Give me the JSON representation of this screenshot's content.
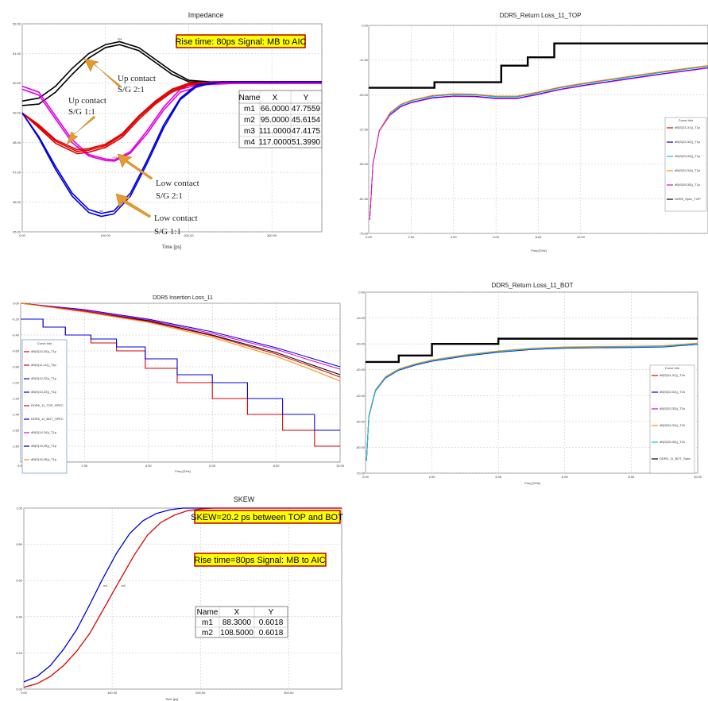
{
  "chart_data": [
    {
      "id": "impedance",
      "type": "line",
      "title": "Impedance",
      "xlabel": "Time [ps]",
      "ylabel": "",
      "xlim": [
        0,
        360
      ],
      "ylim": [
        45,
        52
      ],
      "xticks": [
        "0.00",
        "100.00",
        "200.00",
        "300.00"
      ],
      "yticks": [
        "45.00",
        "46.00",
        "47.00",
        "48.00",
        "49.00",
        "50.00",
        "51.00",
        "52.00"
      ],
      "info_box": "Rise time: 80ps  Signal: MB to AIC",
      "annotations": [
        "Up contact",
        "S/G 2:1",
        "Up contact",
        "S/G 1:1",
        "Low contact",
        "S/G 2:1",
        "Low contact",
        "S/G 1:1"
      ],
      "marker_table": {
        "headers": [
          "Name",
          "X",
          "Y"
        ],
        "rows": [
          [
            "m1",
            "66.0000",
            "47.7559"
          ],
          [
            "m2",
            "95.0000",
            "45.6154"
          ],
          [
            "m3",
            "111.0000",
            "47.4175"
          ],
          [
            "m4",
            "117.0000",
            "51.3990"
          ]
        ]
      },
      "series": [
        {
          "color": "#000000",
          "x": [
            0,
            20,
            40,
            60,
            80,
            100,
            117,
            140,
            160,
            180,
            200,
            250,
            300,
            360
          ],
          "y": [
            49.4,
            49.5,
            49.9,
            50.5,
            51.0,
            51.3,
            51.4,
            51.2,
            50.8,
            50.4,
            50.1,
            50.0,
            50.0,
            50.0
          ]
        },
        {
          "color": "#000000",
          "x": [
            0,
            20,
            40,
            60,
            80,
            100,
            117,
            140,
            160,
            180,
            200,
            250,
            300,
            360
          ],
          "y": [
            49.25,
            49.3,
            49.7,
            50.3,
            50.85,
            51.2,
            51.3,
            51.1,
            50.7,
            50.3,
            50.05,
            50.0,
            50.0,
            50.0
          ]
        },
        {
          "color": "#e000e0",
          "x": [
            0,
            20,
            40,
            60,
            80,
            100,
            111,
            130,
            150,
            170,
            190,
            220,
            260,
            300,
            360
          ],
          "y": [
            49.9,
            49.7,
            48.9,
            48.1,
            47.6,
            47.45,
            47.42,
            47.7,
            48.4,
            49.2,
            49.8,
            50.0,
            50.0,
            50.0,
            50.0
          ]
        },
        {
          "color": "#e000e0",
          "x": [
            0,
            20,
            40,
            60,
            80,
            100,
            111,
            130,
            150,
            170,
            190,
            220,
            260,
            300,
            360
          ],
          "y": [
            49.8,
            49.6,
            48.8,
            48.0,
            47.55,
            47.4,
            47.38,
            47.65,
            48.3,
            49.1,
            49.7,
            49.95,
            50.0,
            50.0,
            50.0
          ]
        },
        {
          "color": "#e00000",
          "x": [
            0,
            20,
            40,
            66,
            80,
            100,
            120,
            140,
            160,
            180,
            200,
            230,
            260,
            300,
            360
          ],
          "y": [
            49.0,
            48.6,
            48.1,
            47.76,
            47.8,
            47.95,
            48.3,
            48.9,
            49.4,
            49.8,
            50.0,
            50.05,
            50.05,
            50.05,
            50.05
          ]
        },
        {
          "color": "#e00000",
          "x": [
            0,
            20,
            40,
            66,
            80,
            100,
            120,
            140,
            160,
            180,
            200,
            230,
            260,
            300,
            360
          ],
          "y": [
            49.0,
            48.55,
            48.05,
            47.7,
            47.75,
            47.9,
            48.25,
            48.85,
            49.35,
            49.75,
            49.97,
            50.05,
            50.05,
            50.05,
            50.05
          ]
        },
        {
          "color": "#e00000",
          "x": [
            0,
            20,
            40,
            66,
            80,
            100,
            120,
            140,
            160,
            180,
            200,
            230,
            260,
            300,
            360
          ],
          "y": [
            49.0,
            48.5,
            47.98,
            47.63,
            47.68,
            47.84,
            48.18,
            48.78,
            49.3,
            49.7,
            49.93,
            50.03,
            50.05,
            50.05,
            50.05
          ]
        },
        {
          "color": "#0000e0",
          "x": [
            0,
            20,
            40,
            60,
            80,
            95,
            110,
            130,
            150,
            170,
            190,
            210,
            240,
            280,
            360
          ],
          "y": [
            49.0,
            48.2,
            47.2,
            46.3,
            45.75,
            45.62,
            45.7,
            46.3,
            47.4,
            48.6,
            49.5,
            49.95,
            50.05,
            50.05,
            50.05
          ]
        },
        {
          "color": "#0000e0",
          "x": [
            0,
            20,
            40,
            60,
            80,
            95,
            110,
            130,
            150,
            170,
            190,
            210,
            240,
            280,
            360
          ],
          "y": [
            49.0,
            48.15,
            47.1,
            46.2,
            45.65,
            45.52,
            45.6,
            46.2,
            47.3,
            48.5,
            49.45,
            49.9,
            50.05,
            50.05,
            50.05
          ]
        }
      ]
    },
    {
      "id": "rl-top",
      "type": "line",
      "title": "DDR5_Return Loss_11_TOP",
      "xlabel": "Freq [GHz]",
      "ylabel": "",
      "xlim": [
        0,
        16
      ],
      "ylim": [
        -75,
        0
      ],
      "xticks": [
        "0.00",
        "2.00",
        "4.00",
        "6.00",
        "8.00",
        "10.00"
      ],
      "yticks": [
        "0.00",
        "-12.50",
        "-25.00",
        "-37.50",
        "-50.00",
        "-62.50",
        "-75.00"
      ],
      "legend_title": "Curve Info",
      "legend_position": "right",
      "legend": [
        "dB(S(31,31))_T1p",
        "dB(S(32,32))_T1p",
        "dB(S(33,33))_T1p",
        "dB(S(34,34))_T1p",
        "dB(S(35,35))_T1p",
        "DDR5_Spec_TOP"
      ],
      "legend_colors": [
        "#e00000",
        "#0000e0",
        "#00c8e0",
        "#ff8c00",
        "#e000e0",
        "#000000"
      ],
      "spec_limit": {
        "x": [
          0,
          3.1,
          3.1,
          6.25,
          6.25,
          7.5,
          7.5,
          8.75,
          8.75,
          16
        ],
        "y": [
          -22.5,
          -22.5,
          -20.5,
          -20.5,
          -14.5,
          -14.5,
          -11.5,
          -11.5,
          -6.5,
          -6.5
        ]
      },
      "curve": {
        "x": [
          0.05,
          0.2,
          0.5,
          1,
          1.5,
          2,
          3,
          4,
          5,
          6,
          7,
          8,
          9,
          10,
          12,
          14,
          16
        ],
        "y": [
          -70,
          -50,
          -38,
          -32,
          -29,
          -27.5,
          -25.8,
          -25.2,
          -25.3,
          -26.0,
          -26.0,
          -24.5,
          -22.8,
          -21.5,
          -19.2,
          -17.0,
          -15.0
        ]
      }
    },
    {
      "id": "il",
      "type": "line",
      "title": "DDR5 Insertion Loss_11",
      "xlabel": "Freq [GHz]",
      "ylabel": "",
      "xlim": [
        0,
        10
      ],
      "ylim": [
        -2,
        0
      ],
      "xticks": [
        "0.00",
        "2.00",
        "4.00",
        "6.00",
        "8.00",
        "10.00"
      ],
      "yticks": [
        "0.00",
        "-0.20",
        "-0.40",
        "-0.60",
        "-0.80",
        "-1.00",
        "-1.20",
        "-1.40",
        "-1.60",
        "-1.80"
      ],
      "legend_title": "Curve Info",
      "legend_position": "left",
      "legend": [
        "dB(S(10,20))_T1p",
        "dB(S(11,21))_T1p",
        "dB(S(12,22))_T1p",
        "dB(S(13,23))_T1p",
        "DDR5_11_TOP_SPEC",
        "DDR5_11_BOT_SPEC",
        "dB(S(14,24))_T1p",
        "dB(S(15,25))_T1p",
        "dB(S(16,26))_T1p"
      ],
      "legend_colors": [
        "#e00000",
        "#e00000",
        "#0000e0",
        "#0000e0",
        "#e00000",
        "#0000e0",
        "#e000e0",
        "#000080",
        "#ff8c00"
      ],
      "spec_top": {
        "x": [
          0,
          0.7,
          0.7,
          1.4,
          1.4,
          2.2,
          2.2,
          3.0,
          3.0,
          3.9,
          3.9,
          4.9,
          4.9,
          6.0,
          6.0,
          7.1,
          7.1,
          8.2,
          8.2,
          9.2,
          9.2,
          10
        ],
        "y": [
          -0.2,
          -0.2,
          -0.3,
          -0.3,
          -0.4,
          -0.4,
          -0.5,
          -0.5,
          -0.6,
          -0.6,
          -0.82,
          -0.82,
          -1.0,
          -1.0,
          -1.2,
          -1.2,
          -1.4,
          -1.4,
          -1.6,
          -1.6,
          -1.8,
          -1.8
        ]
      },
      "spec_bot": {
        "x": [
          0,
          0.7,
          0.7,
          1.4,
          1.4,
          2.2,
          2.2,
          3.0,
          3.0,
          3.9,
          3.9,
          4.9,
          4.9,
          6.0,
          6.0,
          7.1,
          7.1,
          8.2,
          8.2,
          9.2,
          9.2,
          10
        ],
        "y": [
          -0.2,
          -0.2,
          -0.3,
          -0.3,
          -0.4,
          -0.4,
          -0.45,
          -0.45,
          -0.55,
          -0.55,
          -0.7,
          -0.7,
          -0.9,
          -0.9,
          -1.0,
          -1.0,
          -1.2,
          -1.2,
          -1.4,
          -1.4,
          -1.6,
          -1.6
        ]
      },
      "curves": [
        {
          "color": "#0000e0",
          "x": [
            0,
            2,
            4,
            6,
            8,
            9,
            10
          ],
          "y": [
            0,
            -0.08,
            -0.2,
            -0.36,
            -0.56,
            -0.68,
            -0.8
          ]
        },
        {
          "color": "#e000e0",
          "x": [
            0,
            2,
            4,
            6,
            8,
            9,
            10
          ],
          "y": [
            0,
            -0.09,
            -0.21,
            -0.38,
            -0.58,
            -0.71,
            -0.83
          ]
        },
        {
          "color": "#000000",
          "x": [
            0,
            2,
            4,
            6,
            8,
            9,
            10
          ],
          "y": [
            0,
            -0.1,
            -0.22,
            -0.4,
            -0.62,
            -0.76,
            -0.9
          ]
        },
        {
          "color": "#e00000",
          "x": [
            0,
            2,
            4,
            6,
            8,
            9,
            10
          ],
          "y": [
            0,
            -0.1,
            -0.23,
            -0.41,
            -0.64,
            -0.78,
            -0.93
          ]
        },
        {
          "color": "#ff8c00",
          "x": [
            0,
            2,
            4,
            6,
            8,
            9,
            10
          ],
          "y": [
            0,
            -0.11,
            -0.24,
            -0.43,
            -0.67,
            -0.82,
            -0.98
          ]
        }
      ]
    },
    {
      "id": "rl-bot",
      "type": "line",
      "title": "DDR5_Return Loss_11_BOT",
      "xlabel": "Freq [GHz]",
      "ylabel": "",
      "xlim": [
        0,
        10
      ],
      "ylim": [
        -70,
        0
      ],
      "xticks": [
        "0.00",
        "2.00",
        "4.00",
        "6.00",
        "8.00",
        "10.00"
      ],
      "yticks": [
        "0.00",
        "-10.00",
        "-20.00",
        "-30.00",
        "-40.00",
        "-50.00",
        "-60.00",
        "-70.00"
      ],
      "legend_title": "Curve Info",
      "legend_position": "right",
      "legend": [
        "dB(S(31,31))_T1b",
        "dB(S(32,32))_T1b",
        "dB(S(33,33))_T1b",
        "dB(S(34,34))_T1b",
        "dB(S(35,35))_T1b",
        "DDR5_11_BOT_Spec"
      ],
      "legend_colors": [
        "#e00000",
        "#0000e0",
        "#e000e0",
        "#ff8c00",
        "#00c8e0",
        "#000000"
      ],
      "spec_limit": {
        "x": [
          0,
          1.0,
          1.0,
          2.0,
          2.0,
          4.0,
          4.0,
          10
        ],
        "y": [
          -27,
          -27,
          -24.5,
          -24.5,
          -20,
          -20,
          -18,
          -18
        ]
      },
      "curve": {
        "x": [
          0.03,
          0.1,
          0.3,
          0.6,
          1,
          1.5,
          2,
          3,
          4,
          5,
          6,
          7,
          8,
          9,
          10
        ],
        "y": [
          -65,
          -48,
          -38,
          -33,
          -30,
          -28,
          -26.5,
          -24.5,
          -23,
          -22,
          -21.5,
          -21.3,
          -21.2,
          -21,
          -20
        ]
      }
    },
    {
      "id": "skew",
      "type": "line",
      "title": "SKEW",
      "xlabel": "Time [ps]",
      "ylabel": "",
      "xlim": [
        0,
        360
      ],
      "ylim": [
        0,
        1
      ],
      "xticks": [
        "0.00",
        "100.00",
        "200.00",
        "300.00"
      ],
      "yticks": [
        "0.00",
        "0.20",
        "0.40",
        "0.60",
        "0.80",
        "1.00"
      ],
      "info_boxes": [
        "SKEW=20.2 ps  between  TOP and BOT",
        "Rise time=80ps Signal: MB to AIC"
      ],
      "marker_table": {
        "headers": [
          "Name",
          "X",
          "Y"
        ],
        "rows": [
          [
            "m1",
            "88.3000",
            "0.6018"
          ],
          [
            "m2",
            "108.5000",
            "0.6018"
          ]
        ]
      },
      "series": [
        {
          "color": "#0000e0",
          "x": [
            0,
            15,
            30,
            45,
            60,
            75,
            88.3,
            105,
            120,
            135,
            150,
            165,
            180,
            195,
            220,
            360
          ],
          "y": [
            0.04,
            0.07,
            0.13,
            0.22,
            0.33,
            0.47,
            0.6,
            0.75,
            0.86,
            0.93,
            0.97,
            0.99,
            1.0,
            1.0,
            1.0,
            1.0
          ]
        },
        {
          "color": "#e00000",
          "x": [
            0,
            15,
            30,
            45,
            60,
            75,
            90,
            108.5,
            125,
            140,
            155,
            170,
            185,
            200,
            215,
            240,
            360
          ],
          "y": [
            0.01,
            0.03,
            0.07,
            0.13,
            0.21,
            0.31,
            0.44,
            0.6,
            0.74,
            0.85,
            0.92,
            0.96,
            0.985,
            0.995,
            1.0,
            1.0,
            1.0
          ]
        }
      ]
    }
  ]
}
